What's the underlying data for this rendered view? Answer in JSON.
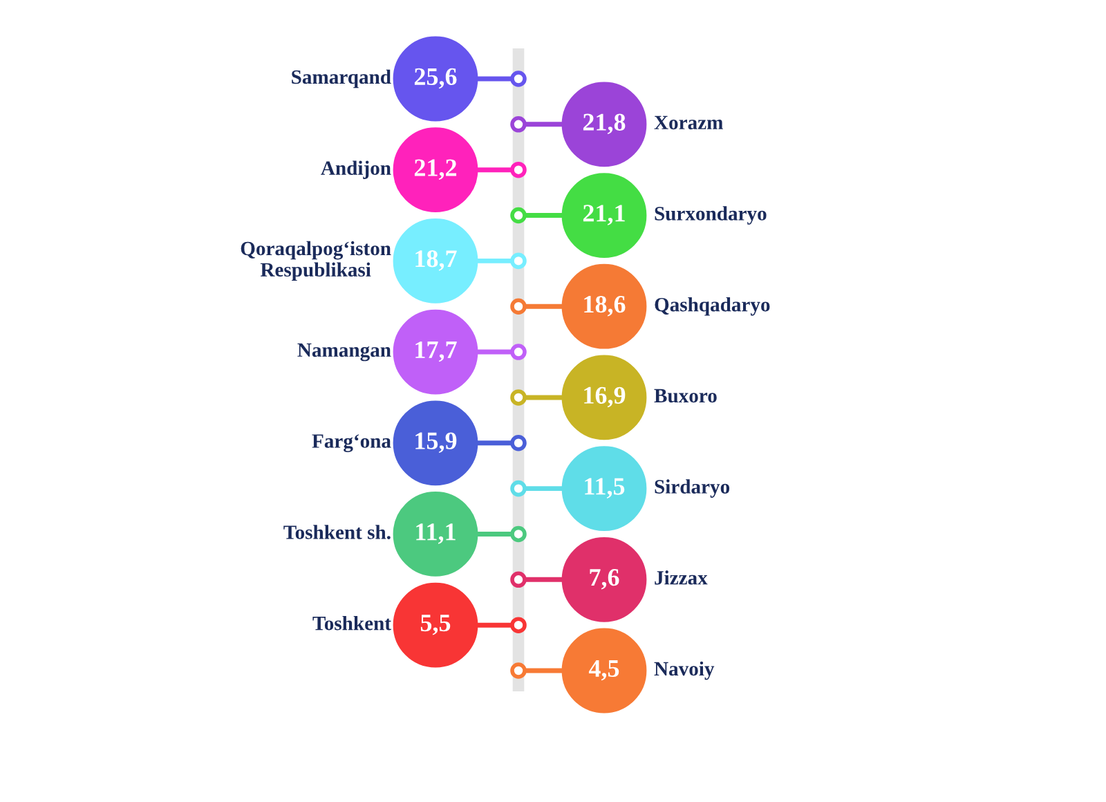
{
  "chart_data": {
    "type": "other",
    "categories": [
      "Samarqand",
      "Xorazm",
      "Andijon",
      "Surxondaryo",
      "Qoraqalpog‘iston\nRespublikasi",
      "Qashqadaryo",
      "Namangan",
      "Buxoro",
      "Farg‘ona",
      "Sirdaryo",
      "Toshkent sh.",
      "Jizzax",
      "Toshkent",
      "Navoiy"
    ],
    "values": [
      25.6,
      21.8,
      21.2,
      21.1,
      18.7,
      18.6,
      17.7,
      16.9,
      15.9,
      11.5,
      11.1,
      7.6,
      5.5,
      4.5
    ],
    "colors": [
      "#6655ee",
      "#9b44d8",
      "#ff22bb",
      "#44dd44",
      "#77eeff",
      "#f57a35",
      "#c060f8",
      "#c8b425",
      "#4a5fd8",
      "#5fdde8",
      "#4cc97f",
      "#e0306a",
      "#f83535",
      "#f77a35"
    ],
    "value_labels": [
      "25,6",
      "21,8",
      "21,2",
      "21,1",
      "18,7",
      "18,6",
      "17,7",
      "16,9",
      "15,9",
      "11,5",
      "11,1",
      "7,6",
      "5,5",
      "4,5"
    ]
  }
}
